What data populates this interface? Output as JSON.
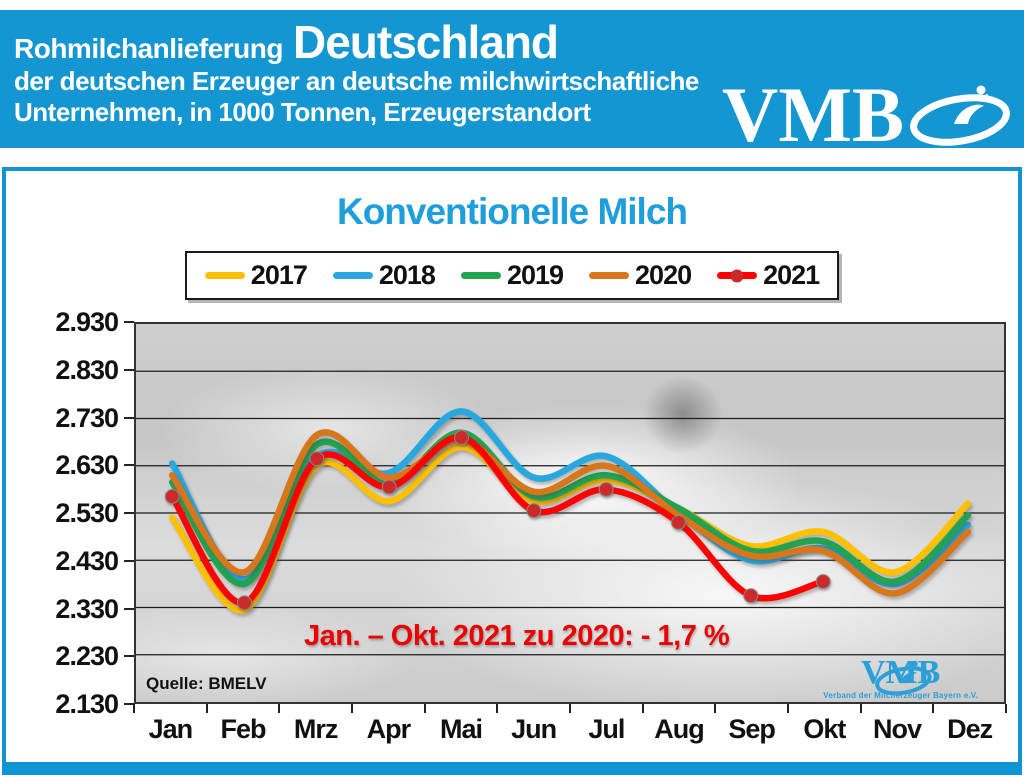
{
  "header": {
    "title_small": "Rohmilchanlieferung",
    "title_large": "Deutschland",
    "subtitle_line1": "der deutschen Erzeuger an deutsche milchwirtschaftliche",
    "subtitle_line2": "Unternehmen, in 1000 Tonnen, Erzeugerstandort",
    "logo_text": "VMB",
    "bg_color": "#1496d2"
  },
  "chart": {
    "title": "Konventionelle Milch",
    "title_color": "#1e9fdc",
    "annotation": "Jan. – Okt. 2021 zu 2020: - 1,7 %",
    "annotation_color": "#ee0000",
    "source": "Quelle: BMELV",
    "logo_text": "VMB",
    "logo_subtext": "Verband der Milcherzeuger Bayern e.V."
  },
  "chart_data": {
    "type": "line",
    "title": "Konventionelle Milch",
    "categories": [
      "Jan",
      "Feb",
      "Mrz",
      "Apr",
      "Mai",
      "Jun",
      "Jul",
      "Aug",
      "Sep",
      "Okt",
      "Nov",
      "Dez"
    ],
    "series": [
      {
        "name": "2017",
        "color": "#FFC000",
        "values": [
          2520,
          2325,
          2630,
          2555,
          2670,
          2555,
          2600,
          2540,
          2460,
          2490,
          2405,
          2550
        ]
      },
      {
        "name": "2018",
        "color": "#29A8DF",
        "values": [
          2635,
          2390,
          2650,
          2615,
          2745,
          2605,
          2650,
          2530,
          2430,
          2455,
          2380,
          2505
        ]
      },
      {
        "name": "2019",
        "color": "#21A350",
        "values": [
          2595,
          2380,
          2675,
          2590,
          2700,
          2565,
          2610,
          2540,
          2450,
          2470,
          2385,
          2525
        ]
      },
      {
        "name": "2020",
        "color": "#D7761B",
        "values": [
          2610,
          2405,
          2695,
          2605,
          2685,
          2575,
          2630,
          2525,
          2440,
          2450,
          2360,
          2490
        ]
      },
      {
        "name": "2021",
        "color": "#FF0000",
        "marker": true,
        "marker_color": "#cc2a2a",
        "values": [
          2565,
          2340,
          2645,
          2585,
          2690,
          2535,
          2580,
          2510,
          2355,
          2385,
          null,
          null
        ]
      }
    ],
    "ylim": [
      2130,
      2930
    ],
    "ytick_step": 100,
    "ytick_labels": [
      "2.930",
      "2.830",
      "2.730",
      "2.630",
      "2.530",
      "2.430",
      "2.330",
      "2.230",
      "2.130"
    ],
    "grid": true,
    "legend_position": "top",
    "ylabel": "1000 Tonnen"
  }
}
